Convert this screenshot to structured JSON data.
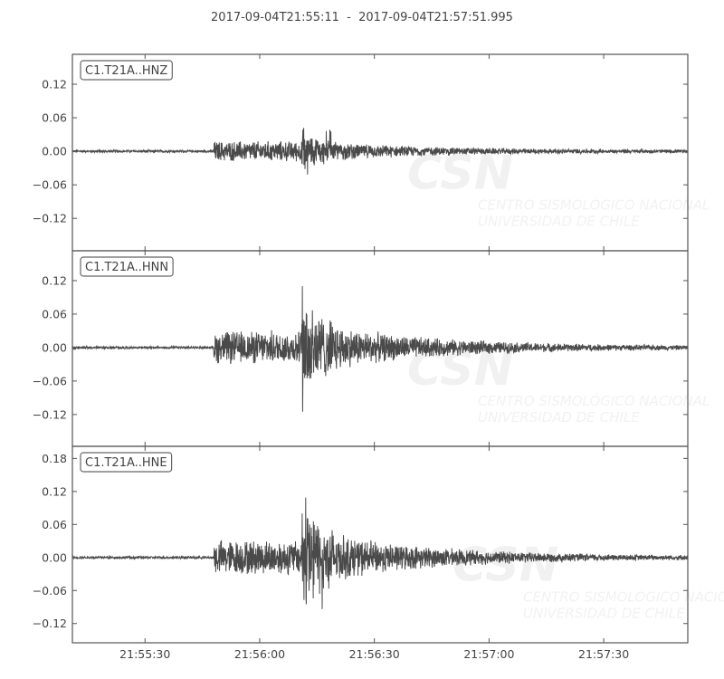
{
  "chart_data": {
    "type": "line",
    "title": "2017-09-04T21:55:11  -  2017-09-04T21:57:51.995",
    "start_time": "2017-09-04T21:55:11",
    "end_time": "2017-09-04T21:57:51.995",
    "x_ticks": [
      "21:55:30",
      "21:56:00",
      "21:56:30",
      "21:57:00",
      "21:57:30"
    ],
    "x_tick_seconds": [
      19,
      49,
      79,
      109,
      139
    ],
    "line_color": "#4a4a4a",
    "grid": false,
    "watermark": {
      "logo": "CSN",
      "line1": "CENTRO SISMOLÓGICO NACIONAL",
      "line2": "UNIVERSIDAD DE CHILE"
    },
    "traces": [
      {
        "name": "C1.T21A..HNZ",
        "ylim": [
          -0.178,
          0.1735
        ],
        "y_ticks": [
          "0.12",
          "0.06",
          "0.00",
          "−0.06",
          "−0.12"
        ],
        "y_tick_values": [
          0.12,
          0.06,
          0,
          -0.06,
          -0.12
        ],
        "onset": "21:55:48",
        "strong_motion": "21:56:11",
        "max": 0.045,
        "min": -0.052
      },
      {
        "name": "C1.T21A..HNN",
        "ylim": [
          -0.177,
          0.1735
        ],
        "y_ticks": [
          "0.12",
          "0.06",
          "0.00",
          "−0.06",
          "−0.12"
        ],
        "y_tick_values": [
          0.12,
          0.06,
          0,
          -0.06,
          -0.12
        ],
        "onset": "21:55:48",
        "strong_motion": "21:56:11",
        "max": 0.11,
        "min": -0.142
      },
      {
        "name": "C1.T21A..HNE",
        "ylim": [
          -0.155,
          0.202
        ],
        "y_ticks": [
          "0.18",
          "0.12",
          "0.06",
          "0.00",
          "−0.06",
          "−0.12"
        ],
        "y_tick_values": [
          0.18,
          0.12,
          0.06,
          0,
          -0.06,
          -0.12
        ],
        "onset": "21:55:48",
        "strong_motion": "21:56:11",
        "max": 0.155,
        "min": -0.122
      }
    ]
  }
}
